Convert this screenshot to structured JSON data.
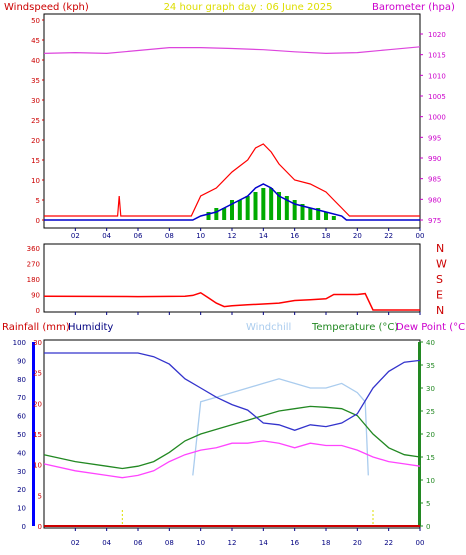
{
  "header_top": {
    "left": "Windspeed (kph)",
    "center": "24 hour graph day : 06 June 2025",
    "right": "Barometer (hpa)"
  },
  "header_bottom": {
    "rainfall": "Rainfall (mm)",
    "humidity": "Humidity",
    "windchill": "Windchill",
    "temperature": "Temperature (°C)",
    "dewpoint": "Dew Point (°C)"
  },
  "x_ticks": [
    "02",
    "04",
    "06",
    "08",
    "10",
    "12",
    "14",
    "16",
    "18",
    "20",
    "22",
    "00"
  ],
  "colors": {
    "wind_speed": "#ff0000",
    "wind_avg": "#0000cc",
    "gust_bars": "#00aa00",
    "barometer": "#dd44dd",
    "direction": "#ff0000",
    "humidity": "#3333cc",
    "windchill": "#aaccee",
    "temperature": "#228822",
    "dewpoint": "#ff44ff",
    "rain": "#cc0000",
    "rain_axis": "#0000ff"
  },
  "chart_data": [
    {
      "type": "line",
      "panel": "wind_barometer",
      "ylabel_left": "Windspeed (kph)",
      "ylabel_right": "Barometer (hpa)",
      "ylim_left": [
        0,
        50
      ],
      "yticks_left": [
        "0",
        "5",
        "10",
        "15",
        "20",
        "25",
        "30",
        "35",
        "40",
        "45",
        "50"
      ],
      "ylim_right": [
        975,
        1020
      ],
      "yticks_right": [
        "975",
        "980",
        "985",
        "990",
        "995",
        "1000",
        "1005",
        "1010",
        "1015",
        "1020"
      ],
      "xlim_hours": [
        0,
        24
      ],
      "series": [
        {
          "name": "Barometer",
          "axis": "right",
          "x": [
            0,
            2,
            4,
            6,
            8,
            10,
            12,
            14,
            16,
            18,
            20,
            22,
            24
          ],
          "y": [
            1015.3,
            1015.5,
            1015.3,
            1016.0,
            1016.7,
            1016.7,
            1016.5,
            1016.2,
            1015.7,
            1015.3,
            1015.5,
            1016.2,
            1016.9
          ]
        },
        {
          "name": "Wind Avg",
          "axis": "left",
          "x": [
            0,
            4.8,
            4.9,
            9.5,
            10,
            11,
            12,
            13,
            13.5,
            14,
            14.5,
            15,
            16,
            17,
            18,
            19,
            19.3,
            24
          ],
          "y": [
            0,
            0,
            0,
            0,
            1,
            2,
            4,
            6,
            8,
            9,
            8,
            6,
            4,
            3,
            2,
            1,
            0,
            0
          ]
        },
        {
          "name": "Wind Speed",
          "axis": "left",
          "x": [
            0,
            4.7,
            4.8,
            4.9,
            9.4,
            10,
            11,
            12,
            13,
            13.5,
            14,
            14.5,
            15,
            16,
            17,
            18,
            18.5,
            19,
            19.5,
            24
          ],
          "y": [
            1,
            1,
            6,
            1,
            1,
            6,
            8,
            12,
            15,
            18,
            19,
            17,
            14,
            10,
            9,
            7,
            5,
            3,
            1,
            1
          ]
        },
        {
          "name": "Gust",
          "axis": "left",
          "x": [
            10.5,
            11,
            11.5,
            12,
            12.5,
            13,
            13.5,
            14,
            14.5,
            15,
            15.5,
            16,
            16.5,
            17,
            17.5,
            18,
            18.5
          ],
          "y": [
            2,
            3,
            3,
            5,
            5,
            6,
            7,
            8,
            8,
            7,
            6,
            5,
            4,
            3,
            3,
            2,
            1
          ]
        }
      ]
    },
    {
      "type": "line",
      "panel": "wind_direction",
      "yticks_left": [
        "0",
        "90",
        "180",
        "270",
        "360"
      ],
      "ylim": [
        0,
        360
      ],
      "compass_labels": [
        "N",
        "W",
        "S",
        "E",
        "N"
      ],
      "series": [
        {
          "name": "Wind Direction",
          "x": [
            0,
            6,
            9,
            9.5,
            10,
            10.5,
            11,
            11.5,
            12,
            13,
            14,
            15,
            16,
            17,
            18,
            18.5,
            20,
            20.5,
            21,
            24
          ],
          "y": [
            80,
            78,
            80,
            85,
            100,
            70,
            40,
            20,
            25,
            30,
            35,
            40,
            55,
            60,
            65,
            90,
            90,
            95,
            0,
            0
          ]
        }
      ]
    },
    {
      "type": "line",
      "panel": "temperature_humidity",
      "ylabel_left": "Rainfall (mm)",
      "yticks_humidity": [
        "0",
        "10",
        "20",
        "30",
        "40",
        "50",
        "60",
        "70",
        "80",
        "90",
        "100"
      ],
      "ylim_humidity": [
        0,
        100
      ],
      "yticks_rain": [
        "0",
        "5",
        "10",
        "15",
        "20",
        "25",
        "30"
      ],
      "ylim_rain": [
        0,
        30
      ],
      "yticks_right": [
        "0",
        "5",
        "10",
        "15",
        "20",
        "25",
        "30",
        "35",
        "40"
      ],
      "ylim_right": [
        0,
        40
      ],
      "series": [
        {
          "name": "Humidity",
          "axis": "humidity",
          "x": [
            0,
            2,
            4,
            6,
            7,
            8,
            9,
            10,
            11,
            12,
            13,
            14,
            15,
            16,
            17,
            18,
            19,
            20,
            21,
            22,
            23,
            24
          ],
          "y": [
            94,
            94,
            94,
            94,
            92,
            88,
            80,
            75,
            70,
            66,
            63,
            56,
            55,
            52,
            55,
            54,
            56,
            61,
            75,
            84,
            89,
            90
          ]
        },
        {
          "name": "Windchill",
          "axis": "right",
          "x": [
            9.5,
            10,
            11,
            12,
            13,
            14,
            15,
            16,
            17,
            18,
            19,
            20,
            20.5,
            20.7
          ],
          "y": [
            11,
            27,
            28,
            29,
            30,
            31,
            32,
            31,
            30,
            30,
            31,
            29,
            27,
            11
          ]
        },
        {
          "name": "Temperature (°C)",
          "axis": "right",
          "x": [
            0,
            2,
            4,
            5,
            6,
            7,
            8,
            9,
            10,
            11,
            12,
            13,
            14,
            15,
            16,
            17,
            18,
            19,
            20,
            21,
            22,
            23,
            24
          ],
          "y": [
            15.5,
            14,
            13,
            12.5,
            13,
            14,
            16,
            18.5,
            20,
            21,
            22,
            23,
            24,
            25,
            25.5,
            26,
            25.8,
            25.5,
            24,
            20,
            17,
            15.5,
            15
          ]
        },
        {
          "name": "Dew Point (°C)",
          "axis": "right",
          "x": [
            0,
            2,
            4,
            5,
            6,
            7,
            8,
            9,
            10,
            11,
            12,
            13,
            14,
            15,
            16,
            17,
            18,
            19,
            20,
            21,
            22,
            23,
            24
          ],
          "y": [
            13.5,
            12,
            11,
            10.5,
            11,
            12,
            14,
            15.5,
            16.5,
            17,
            18,
            18,
            18.5,
            18,
            17,
            18,
            17.5,
            17.5,
            16.5,
            15,
            14,
            13.5,
            13
          ]
        },
        {
          "name": "Rainfall",
          "axis": "rain",
          "x": [
            0,
            24
          ],
          "y": [
            0,
            0
          ]
        }
      ]
    }
  ]
}
